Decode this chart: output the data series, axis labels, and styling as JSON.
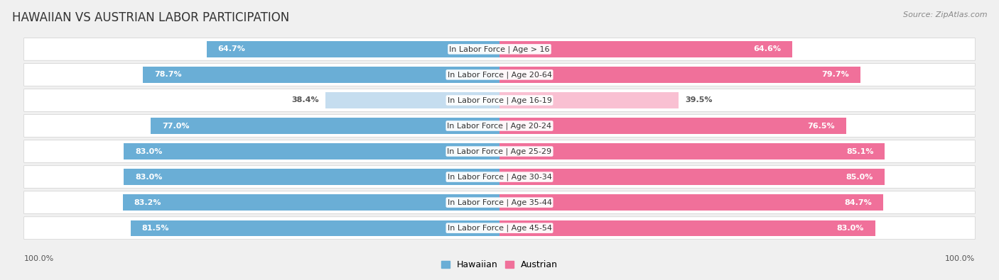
{
  "title": "HAWAIIAN VS AUSTRIAN LABOR PARTICIPATION",
  "source": "Source: ZipAtlas.com",
  "categories": [
    "In Labor Force | Age > 16",
    "In Labor Force | Age 20-64",
    "In Labor Force | Age 16-19",
    "In Labor Force | Age 20-24",
    "In Labor Force | Age 25-29",
    "In Labor Force | Age 30-34",
    "In Labor Force | Age 35-44",
    "In Labor Force | Age 45-54"
  ],
  "hawaiian_values": [
    64.7,
    78.7,
    38.4,
    77.0,
    83.0,
    83.0,
    83.2,
    81.5
  ],
  "austrian_values": [
    64.6,
    79.7,
    39.5,
    76.5,
    85.1,
    85.0,
    84.7,
    83.0
  ],
  "hawaiian_color": "#6aaed6",
  "hawaiian_color_light": "#c5ddef",
  "austrian_color": "#f0709a",
  "austrian_color_light": "#f9c0d2",
  "background_color": "#f0f0f0",
  "row_bg_color": "#e8e8e8",
  "bar_height": 0.62,
  "max_value": 100.0,
  "title_fontsize": 12,
  "label_fontsize": 8,
  "value_fontsize": 8,
  "legend_fontsize": 9,
  "source_fontsize": 8
}
